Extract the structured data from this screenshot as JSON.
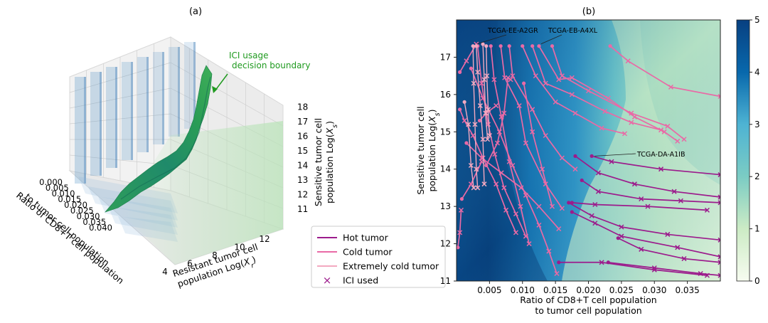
{
  "panels": {
    "a_label": "(a)",
    "b_label": "(b)"
  },
  "chart_data": [
    {
      "type": "3d-surface",
      "panel": "(a)",
      "annotation": "ICI usage\ndecision boundary",
      "x_axis": {
        "label_lines": [
          "Ratio of CD8+T cell population",
          "to tumor cell population"
        ],
        "ticks": [
          "0.000",
          "0.005",
          "0.010",
          "0.015",
          "0.020",
          "0.025",
          "0.030",
          "0.035",
          "0.040"
        ]
      },
      "y_axis": {
        "label_lines": [
          "Resistant tumor cell",
          "population Log(X_r)"
        ],
        "ticks": [
          "4",
          "6",
          "8",
          "10",
          "12"
        ]
      },
      "z_axis": {
        "label_lines": [
          "Sensitive tumor cell",
          "population Log(X_s)"
        ],
        "ticks": [
          "11",
          "12",
          "13",
          "14",
          "15",
          "16",
          "17",
          "18"
        ]
      },
      "colors": {
        "boundary": "#1e8a52",
        "cubes": "#4d8fc4",
        "annotation": "#1f9a1f"
      }
    },
    {
      "type": "heatmap-trajectories",
      "panel": "(b)",
      "xlabel_lines": [
        "Ratio of CD8+T cell population",
        "to tumor cell population"
      ],
      "ylabel_lines": [
        "Sensitive tumor cell",
        "population Log(X_s)"
      ],
      "xlim": [
        0.0,
        0.04
      ],
      "ylim": [
        11,
        18
      ],
      "x_ticks": [
        0.005,
        0.01,
        0.015,
        0.02,
        0.025,
        0.03,
        0.035
      ],
      "x_tick_labels": [
        "0.005",
        "0.010",
        "0.015",
        "0.020",
        "0.025",
        "0.030",
        "0.035"
      ],
      "y_ticks": [
        11,
        12,
        13,
        14,
        15,
        16,
        17
      ],
      "colorbar": {
        "ticks": [
          0,
          1,
          2,
          3,
          4,
          5
        ],
        "range": [
          0,
          5
        ]
      },
      "annotations": [
        {
          "text": "TCGA-EE-A2GR",
          "x": 0.0028,
          "y": 17.3
        },
        {
          "text": "TCGA-EB-A4XL",
          "x": 0.0125,
          "y": 17.3
        },
        {
          "text": "TCGA-DA-A1IB",
          "x": 0.0205,
          "y": 14.35
        }
      ],
      "legend": [
        {
          "label": "Hot tumor",
          "kind": "line",
          "color": "#9c1b8c"
        },
        {
          "label": "Cold tumor",
          "kind": "line",
          "color": "#e96aa6"
        },
        {
          "label": "Extremely cold tumor",
          "kind": "line",
          "color": "#f3a9c0"
        },
        {
          "label": "ICI used",
          "kind": "marker",
          "color": "#9c1b8c"
        }
      ],
      "series": [
        {
          "class": "hot",
          "points": [
            [
              0.0205,
              14.35
            ],
            [
              0.0235,
              14.2
            ],
            [
              0.031,
              14.0
            ],
            [
              0.04,
              13.85
            ]
          ]
        },
        {
          "class": "hot",
          "points": [
            [
              0.018,
              14.35
            ],
            [
              0.0215,
              13.9
            ],
            [
              0.027,
              13.6
            ],
            [
              0.033,
              13.4
            ],
            [
              0.04,
              13.25
            ]
          ]
        },
        {
          "class": "hot",
          "points": [
            [
              0.019,
              13.7
            ],
            [
              0.0215,
              13.4
            ],
            [
              0.028,
              13.2
            ],
            [
              0.034,
              13.15
            ],
            [
              0.04,
              13.1
            ]
          ]
        },
        {
          "class": "hot",
          "points": [
            [
              0.0175,
              13.1
            ],
            [
              0.021,
              13.05
            ],
            [
              0.029,
              13.0
            ],
            [
              0.038,
              12.9
            ]
          ]
        },
        {
          "class": "hot",
          "points": [
            [
              0.017,
              13.1
            ],
            [
              0.0205,
              12.75
            ],
            [
              0.025,
              12.45
            ],
            [
              0.032,
              12.25
            ],
            [
              0.04,
              12.1
            ]
          ]
        },
        {
          "class": "hot",
          "points": [
            [
              0.0175,
              12.85
            ],
            [
              0.021,
              12.55
            ],
            [
              0.025,
              12.2
            ],
            [
              0.0335,
              11.9
            ],
            [
              0.04,
              11.65
            ]
          ]
        },
        {
          "class": "hot",
          "points": [
            [
              0.0245,
              12.15
            ],
            [
              0.028,
              11.85
            ],
            [
              0.0345,
              11.6
            ],
            [
              0.04,
              11.5
            ]
          ]
        },
        {
          "class": "hot",
          "points": [
            [
              0.0155,
              11.5
            ],
            [
              0.022,
              11.5
            ],
            [
              0.03,
              11.3
            ],
            [
              0.038,
              11.15
            ]
          ]
        },
        {
          "class": "hot",
          "points": [
            [
              0.023,
              11.5
            ],
            [
              0.03,
              11.35
            ],
            [
              0.037,
              11.2
            ],
            [
              0.04,
              11.15
            ]
          ]
        },
        {
          "class": "cold",
          "points": [
            [
              0.0233,
              17.3
            ],
            [
              0.026,
              16.9
            ],
            [
              0.0325,
              16.2
            ],
            [
              0.04,
              15.95
            ]
          ]
        },
        {
          "class": "cold",
          "points": [
            [
              0.0145,
              17.3
            ],
            [
              0.016,
              16.5
            ],
            [
              0.02,
              16.1
            ],
            [
              0.0265,
              15.5
            ],
            [
              0.032,
              15.15
            ],
            [
              0.0345,
              14.8
            ]
          ]
        },
        {
          "class": "cold",
          "points": [
            [
              0.0125,
              17.3
            ],
            [
              0.0155,
              16.4
            ],
            [
              0.0175,
              16.45
            ],
            [
              0.023,
              15.9
            ],
            [
              0.027,
              15.4
            ],
            [
              0.0315,
              15.0
            ],
            [
              0.0335,
              14.75
            ]
          ]
        },
        {
          "class": "cold",
          "points": [
            [
              0.0115,
              17.3
            ],
            [
              0.0135,
              16.3
            ],
            [
              0.0175,
              16.0
            ],
            [
              0.0225,
              15.55
            ],
            [
              0.0265,
              15.25
            ],
            [
              0.031,
              15.05
            ]
          ]
        },
        {
          "class": "cold",
          "points": [
            [
              0.01,
              17.3
            ],
            [
              0.012,
              16.5
            ],
            [
              0.015,
              15.8
            ],
            [
              0.018,
              15.5
            ],
            [
              0.022,
              15.1
            ],
            [
              0.0255,
              14.95
            ]
          ]
        },
        {
          "class": "cold",
          "points": [
            [
              0.008,
              17.3
            ],
            [
              0.0085,
              16.5
            ],
            [
              0.0115,
              15.6
            ],
            [
              0.0135,
              14.9
            ],
            [
              0.016,
              14.3
            ],
            [
              0.018,
              14.0
            ]
          ]
        },
        {
          "class": "cold",
          "points": [
            [
              0.0067,
              17.3
            ],
            [
              0.0073,
              16.45
            ],
            [
              0.0095,
              15.7
            ],
            [
              0.0105,
              14.7
            ],
            [
              0.0135,
              13.6
            ],
            [
              0.016,
              12.95
            ]
          ]
        },
        {
          "class": "cold",
          "points": [
            [
              0.0032,
              17.3
            ],
            [
              0.0038,
              16.3
            ],
            [
              0.0048,
              15.2
            ],
            [
              0.0058,
              14.4
            ],
            [
              0.0072,
              13.5
            ],
            [
              0.009,
              12.8
            ],
            [
              0.0105,
              12.2
            ]
          ]
        },
        {
          "class": "cold",
          "points": [
            [
              0.0052,
              17.3
            ],
            [
              0.0057,
              16.4
            ],
            [
              0.0068,
              15.4
            ],
            [
              0.008,
              14.2
            ],
            [
              0.0097,
              13.0
            ],
            [
              0.011,
              12.0
            ]
          ]
        },
        {
          "class": "cold",
          "points": [
            [
              0.0045,
              14.1
            ],
            [
              0.0062,
              14.7
            ],
            [
              0.0072,
              15.5
            ],
            [
              0.0078,
              16.45
            ],
            [
              0.0082,
              16.4
            ]
          ]
        },
        {
          "class": "cold",
          "points": [
            [
              0.0035,
              15.3
            ],
            [
              0.0045,
              15.5
            ],
            [
              0.006,
              15.7
            ]
          ]
        },
        {
          "class": "cold",
          "points": [
            [
              0.0005,
              16.6
            ],
            [
              0.0015,
              16.9
            ],
            [
              0.003,
              17.35
            ]
          ]
        },
        {
          "class": "cold",
          "points": [
            [
              0.0005,
              15.6
            ],
            [
              0.0012,
              15.3
            ],
            [
              0.0025,
              14.9
            ],
            [
              0.004,
              14.3
            ],
            [
              0.006,
              13.6
            ],
            [
              0.0075,
              12.9
            ],
            [
              0.009,
              12.3
            ]
          ]
        },
        {
          "class": "cold",
          "points": [
            [
              0.0022,
              16.7
            ],
            [
              0.004,
              15.9
            ],
            [
              0.0065,
              15.0
            ],
            [
              0.0085,
              14.1
            ],
            [
              0.0105,
              13.3
            ],
            [
              0.0125,
              12.5
            ],
            [
              0.014,
              11.8
            ],
            [
              0.0152,
              11.2
            ]
          ]
        },
        {
          "class": "cold",
          "points": [
            [
              0.0015,
              14.7
            ],
            [
              0.0038,
              14.3
            ],
            [
              0.0068,
              13.9
            ],
            [
              0.0098,
              13.5
            ],
            [
              0.0125,
              13.0
            ],
            [
              0.0155,
              12.4
            ]
          ]
        },
        {
          "class": "cold",
          "points": [
            [
              0.0008,
              13.2
            ],
            [
              0.0022,
              13.6
            ],
            [
              0.0038,
              14.2
            ]
          ]
        },
        {
          "class": "cold",
          "points": [
            [
              0.0102,
              16.3
            ],
            [
              0.0115,
              15.0
            ],
            [
              0.013,
              14.0
            ],
            [
              0.0145,
              13.0
            ]
          ]
        },
        {
          "class": "cold",
          "points": [
            [
              0.0002,
              11.9
            ],
            [
              0.0005,
              12.3
            ],
            [
              0.0007,
              12.9
            ]
          ]
        },
        {
          "class": "xcold",
          "points": [
            [
              0.0025,
              17.3
            ],
            [
              0.0026,
              16.3
            ],
            [
              0.0028,
              15.2
            ],
            [
              0.003,
              14.0
            ],
            [
              0.0032,
              13.5
            ]
          ]
        },
        {
          "class": "xcold",
          "points": [
            [
              0.003,
              17.3
            ],
            [
              0.0032,
              16.6
            ],
            [
              0.0036,
              15.7
            ],
            [
              0.004,
              14.8
            ],
            [
              0.0042,
              13.6
            ]
          ]
        },
        {
          "class": "xcold",
          "points": [
            [
              0.004,
              17.35
            ],
            [
              0.0042,
              16.4
            ],
            [
              0.0044,
              15.5
            ],
            [
              0.0047,
              14.8
            ]
          ]
        },
        {
          "class": "xcold",
          "points": [
            [
              0.0045,
              17.3
            ],
            [
              0.0046,
              16.5
            ],
            [
              0.0048,
              15.6
            ],
            [
              0.005,
              14.9
            ]
          ]
        },
        {
          "class": "xcold",
          "points": [
            [
              0.0012,
              15.8
            ],
            [
              0.0018,
              15.2
            ],
            [
              0.0022,
              14.1
            ],
            [
              0.0026,
              13.5
            ]
          ]
        }
      ]
    }
  ]
}
